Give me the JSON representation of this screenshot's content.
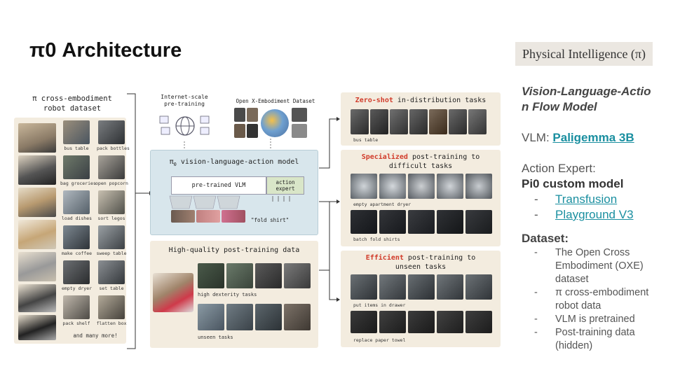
{
  "slide": {
    "title": "π0 Architecture",
    "logo_text": "Physical Intelligence (π)"
  },
  "notes": {
    "model_line1": "Vision-Language-Actio",
    "model_line2": "n Flow Model",
    "vlm_label": "VLM: ",
    "vlm_link": "Paligemma 3B",
    "action_label": "Action Expert:",
    "action_model": "Pi0 custom model",
    "action_links": [
      "Transfusion",
      "Playground V3"
    ],
    "dataset_label": "Dataset:",
    "dataset_items": [
      "The Open Cross Embodiment (OXE) dataset",
      "π cross-embodiment robot data",
      "VLM is pretrained",
      "Post-training data (hidden)"
    ]
  },
  "figure": {
    "left_title_line1": "π cross-embodiment",
    "left_title_line2": "robot dataset",
    "left_tasks": [
      "bus table",
      "pack bottles",
      "bag groceries",
      "open popcorn",
      "load dishes",
      "sort legos",
      "make coffee",
      "sweep table",
      "empty dryer",
      "set table",
      "pack shelf",
      "flatten box"
    ],
    "left_more": "and many more!",
    "internet_line1": "Internet-scale",
    "internet_line2": "pre-training",
    "oxe_label": "Open X-Embodiment Dataset",
    "model_title_sym": "π",
    "model_title_sub": "0",
    "model_title_rest": " vision-language-action model",
    "vlm_box": "pre-trained VLM",
    "expert_line1": "action",
    "expert_line2": "expert",
    "prompt": "\"fold shirt\"",
    "post_title": "High-quality post-training data",
    "post_caps": [
      "high dexterity tasks",
      "unseen tasks"
    ],
    "zero_red": "Zero-shot",
    "zero_rest": " in-distribution tasks",
    "zero_cap": "bus table",
    "spec_red": "Specialized",
    "spec_rest": " post-training to",
    "spec_line2": "difficult tasks",
    "spec_caps": [
      "empty apartment dryer",
      "batch fold shirts"
    ],
    "eff_red": "Efficient",
    "eff_rest": " post-training to",
    "eff_line2": "unseen tasks",
    "eff_caps": [
      "put items in drawer",
      "replace paper towel"
    ]
  }
}
